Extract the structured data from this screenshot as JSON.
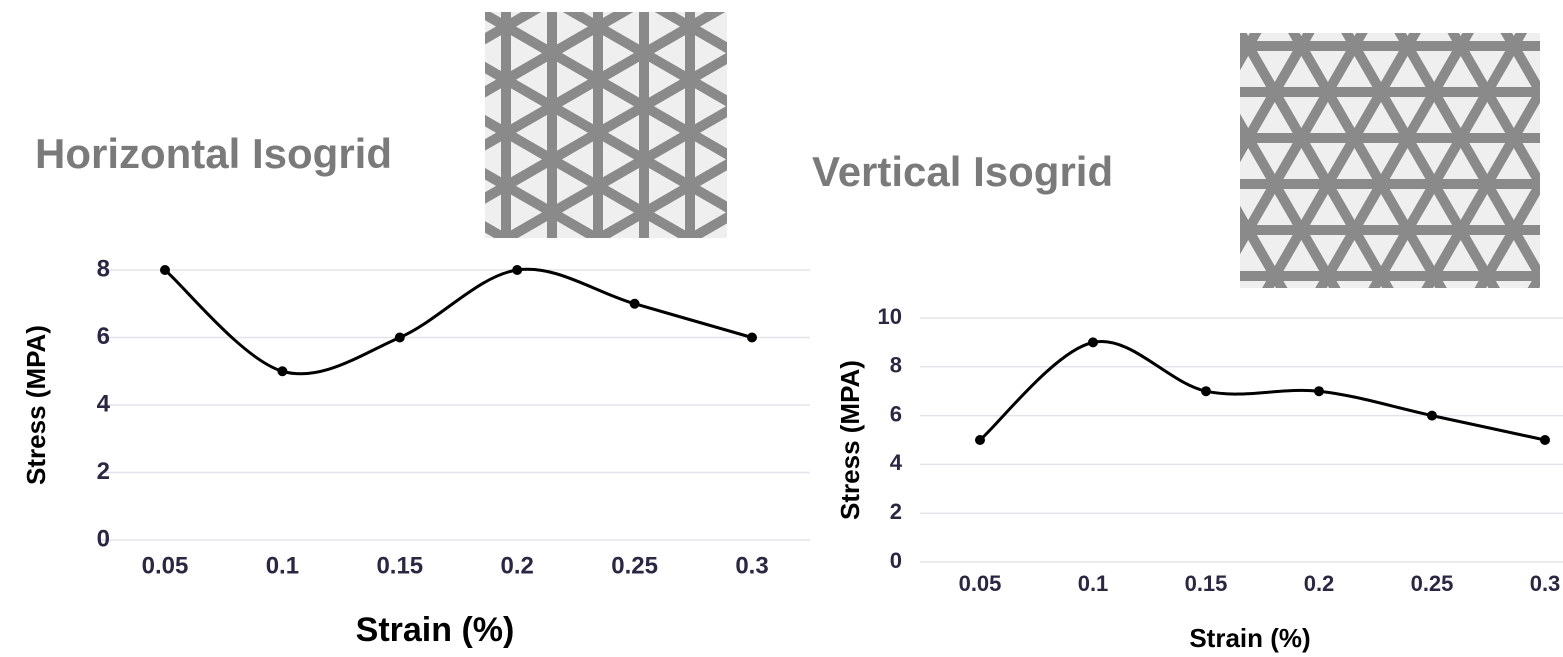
{
  "chart_data": [
    {
      "type": "line",
      "title": "Horizontal Isogrid",
      "x_label": "Strain (%)",
      "y_label": "Stress (MPA)",
      "categories": [
        "0.05",
        "0.1",
        "0.15",
        "0.2",
        "0.25",
        "0.3"
      ],
      "values": [
        8,
        5,
        6,
        8,
        7,
        6
      ],
      "color": "#000000",
      "ylim": [
        0,
        8
      ],
      "yticks": [
        0,
        2,
        4,
        6,
        8
      ],
      "grid": true
    },
    {
      "type": "line",
      "title": "Vertical Isogrid",
      "x_label": "Strain (%)",
      "y_label": "Stress (MPA)",
      "categories": [
        "0.05",
        "0.1",
        "0.15",
        "0.2",
        "0.25",
        "0.3"
      ],
      "values": [
        5,
        9,
        7,
        7,
        6,
        5
      ],
      "color": "#000000",
      "ylim": [
        0,
        10
      ],
      "yticks": [
        0,
        2,
        4,
        6,
        8,
        10
      ],
      "grid": true
    }
  ]
}
